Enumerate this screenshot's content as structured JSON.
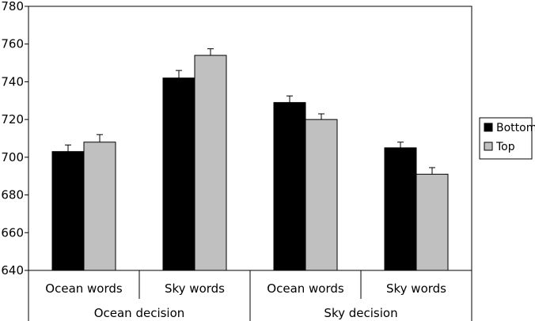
{
  "chart_data": {
    "type": "bar",
    "categories": [
      "Ocean words",
      "Sky words",
      "Ocean words",
      "Sky words"
    ],
    "groups": [
      {
        "label": "Ocean decision",
        "categories": [
          "Ocean words",
          "Sky words"
        ]
      },
      {
        "label": "Sky decision",
        "categories": [
          "Ocean words",
          "Sky words"
        ]
      }
    ],
    "series": [
      {
        "name": "Bottom",
        "color": "#000000",
        "values": [
          703,
          742,
          729,
          705
        ],
        "errors": [
          3.5,
          4,
          3.5,
          3
        ]
      },
      {
        "name": "Top",
        "color": "#c0c0c0",
        "values": [
          708,
          754,
          720,
          691
        ],
        "errors": [
          4,
          3.5,
          3,
          3.5
        ]
      }
    ],
    "ylim": [
      640,
      780
    ],
    "yticks": [
      640,
      660,
      680,
      700,
      720,
      740,
      760,
      780
    ],
    "xlabel": "",
    "ylabel": "",
    "title": "",
    "grid": false,
    "legend_position": "right"
  }
}
